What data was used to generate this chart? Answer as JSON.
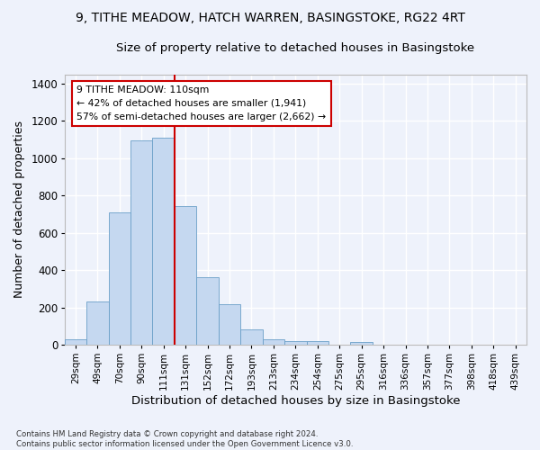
{
  "title_line1": "9, TITHE MEADOW, HATCH WARREN, BASINGSTOKE, RG22 4RT",
  "title_line2": "Size of property relative to detached houses in Basingstoke",
  "xlabel": "Distribution of detached houses by size in Basingstoke",
  "ylabel": "Number of detached properties",
  "categories": [
    "29sqm",
    "49sqm",
    "70sqm",
    "90sqm",
    "111sqm",
    "131sqm",
    "152sqm",
    "172sqm",
    "193sqm",
    "213sqm",
    "234sqm",
    "254sqm",
    "275sqm",
    "295sqm",
    "316sqm",
    "336sqm",
    "357sqm",
    "377sqm",
    "398sqm",
    "418sqm",
    "439sqm"
  ],
  "bar_values": [
    30,
    235,
    710,
    1095,
    1110,
    745,
    365,
    220,
    85,
    30,
    20,
    20,
    0,
    15,
    0,
    0,
    0,
    0,
    0,
    0,
    0
  ],
  "bar_color": "#c5d8f0",
  "bar_edge_color": "#6a9fc8",
  "vline_color": "#cc0000",
  "annotation_line1": "9 TITHE MEADOW: 110sqm",
  "annotation_line2": "← 42% of detached houses are smaller (1,941)",
  "annotation_line3": "57% of semi-detached houses are larger (2,662) →",
  "footnote": "Contains HM Land Registry data © Crown copyright and database right 2024.\nContains public sector information licensed under the Open Government Licence v3.0.",
  "ylim": [
    0,
    1450
  ],
  "bg_color": "#eef2fb",
  "grid_color": "#ffffff",
  "title_fontsize": 10,
  "subtitle_fontsize": 9.5,
  "tick_fontsize": 7.5,
  "ylabel_fontsize": 9,
  "xlabel_fontsize": 9.5
}
